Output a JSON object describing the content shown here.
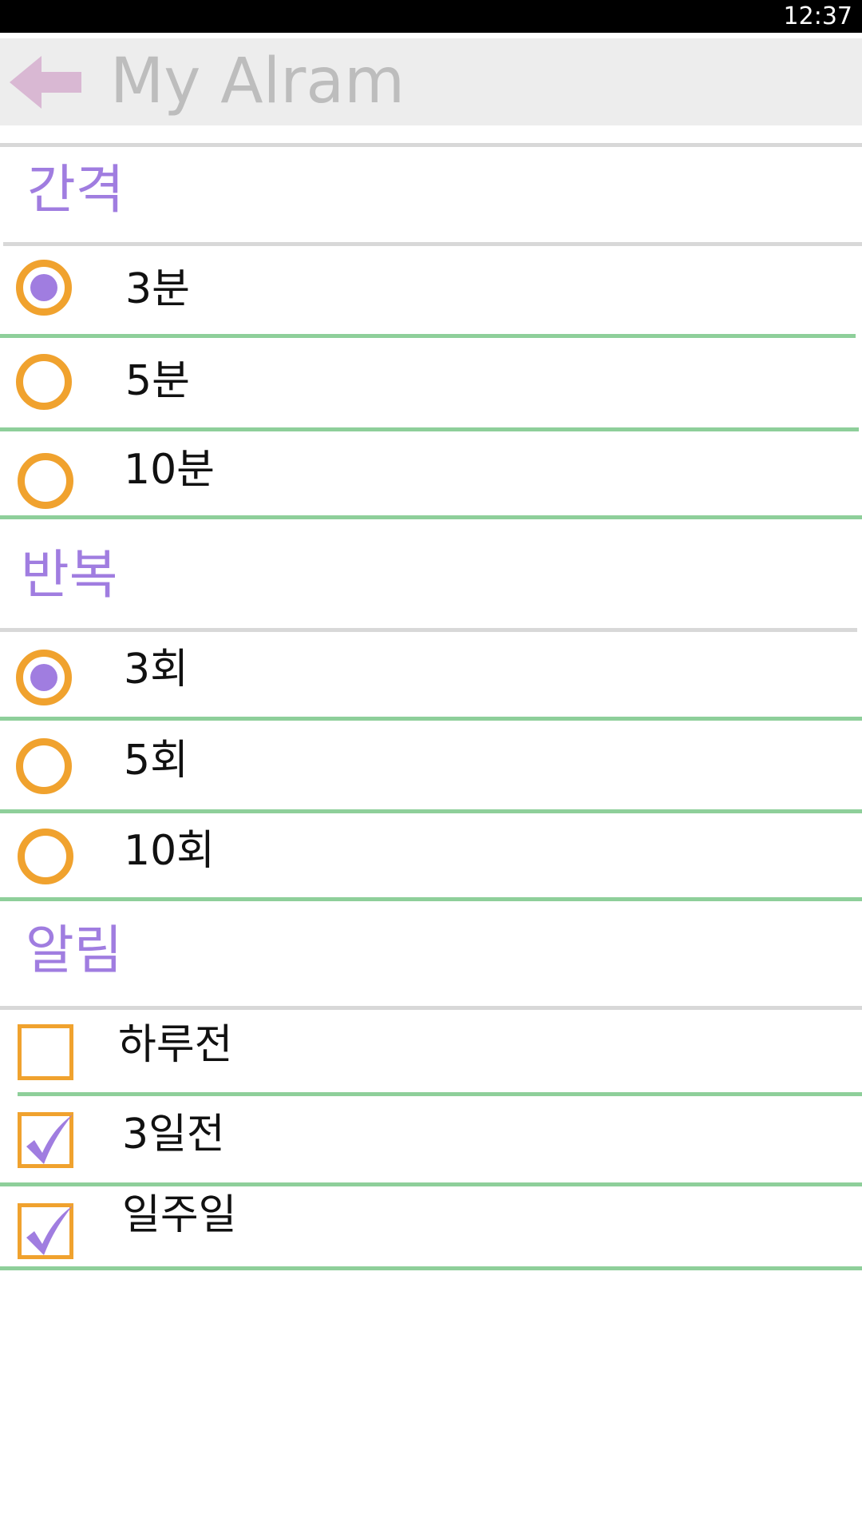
{
  "status_bar": {
    "time": "12:37"
  },
  "app_bar": {
    "back_icon": "arrow-left-icon",
    "title": "My Alram"
  },
  "colors": {
    "accent": "#a07de0",
    "control": "#f0a22e",
    "divider_green": "#8ecf9a",
    "divider_gray": "#d8d8d8",
    "app_bar_bg": "#ededed",
    "back_arrow": "#d9b8d3"
  },
  "sections": [
    {
      "title": "간격",
      "type": "radio",
      "options": [
        {
          "label": "3분",
          "selected": true
        },
        {
          "label": "5분",
          "selected": false
        },
        {
          "label": "10분",
          "selected": false
        }
      ]
    },
    {
      "title": "반복",
      "type": "radio",
      "options": [
        {
          "label": "3회",
          "selected": true
        },
        {
          "label": "5회",
          "selected": false
        },
        {
          "label": "10회",
          "selected": false
        }
      ]
    },
    {
      "title": "알림",
      "type": "checkbox",
      "options": [
        {
          "label": "하루전",
          "checked": false
        },
        {
          "label": "3일전",
          "checked": true
        },
        {
          "label": "일주일",
          "checked": true
        }
      ]
    }
  ]
}
